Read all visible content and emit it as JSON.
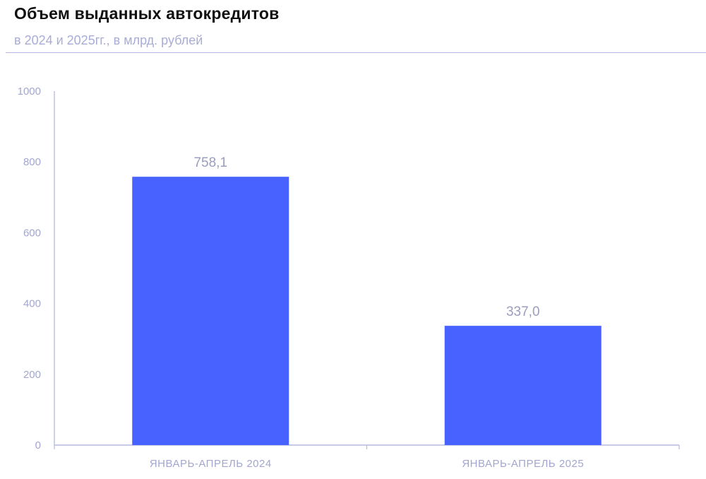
{
  "chart_data": {
    "type": "bar",
    "title": "Объем выданных автокредитов",
    "subtitle": "в 2024 и 2025гг., в млрд. рублей",
    "categories": [
      "ЯНВАРЬ-АПРЕЛЬ 2024",
      "ЯНВАРЬ-АПРЕЛЬ 2025"
    ],
    "values": [
      758.1,
      337.0
    ],
    "data_labels": [
      "758,1",
      "337,0"
    ],
    "ylim": [
      0,
      1000
    ],
    "yticks": [
      "0",
      "200",
      "400",
      "600",
      "800",
      "1000"
    ],
    "xlabel": "",
    "ylabel": "",
    "grid": false,
    "colors": {
      "bar": "#4762ff",
      "axis": "#b5b8e0",
      "text": "#a2a6d0"
    }
  }
}
